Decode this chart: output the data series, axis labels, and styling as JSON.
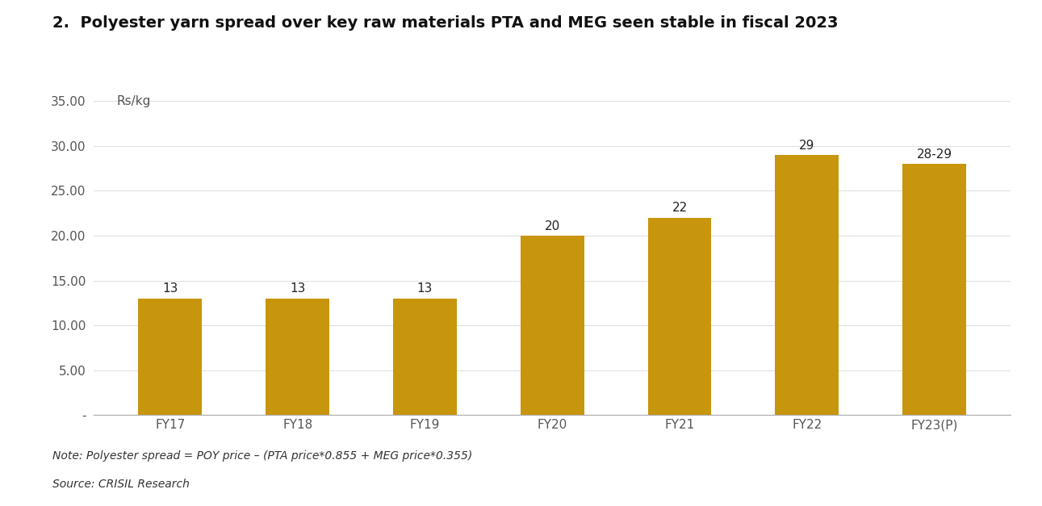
{
  "title": "2.  Polyester yarn spread over key raw materials PTA and MEG seen stable in fiscal 2023",
  "ylabel": "Rs/kg",
  "categories": [
    "FY17",
    "FY18",
    "FY19",
    "FY20",
    "FY21",
    "FY22",
    "FY23(P)"
  ],
  "values": [
    13,
    13,
    13,
    20,
    22,
    29,
    28
  ],
  "labels": [
    "13",
    "13",
    "13",
    "20",
    "22",
    "29",
    "28-29"
  ],
  "bar_color": "#C8960C",
  "ylim": [
    0,
    35
  ],
  "yticks": [
    0,
    5.0,
    10.0,
    15.0,
    20.0,
    25.0,
    30.0,
    35.0
  ],
  "ytick_labels": [
    "-",
    "5.00",
    "10.00",
    "15.00",
    "20.00",
    "25.00",
    "30.00",
    "35.00"
  ],
  "note": "Note: Polyester spread = POY price – (PTA price*0.855 + MEG price*0.355)",
  "source": "Source: CRISIL Research",
  "background_color": "#ffffff",
  "title_fontsize": 14,
  "label_fontsize": 11,
  "tick_fontsize": 11,
  "note_fontsize": 10,
  "bar_width": 0.5
}
